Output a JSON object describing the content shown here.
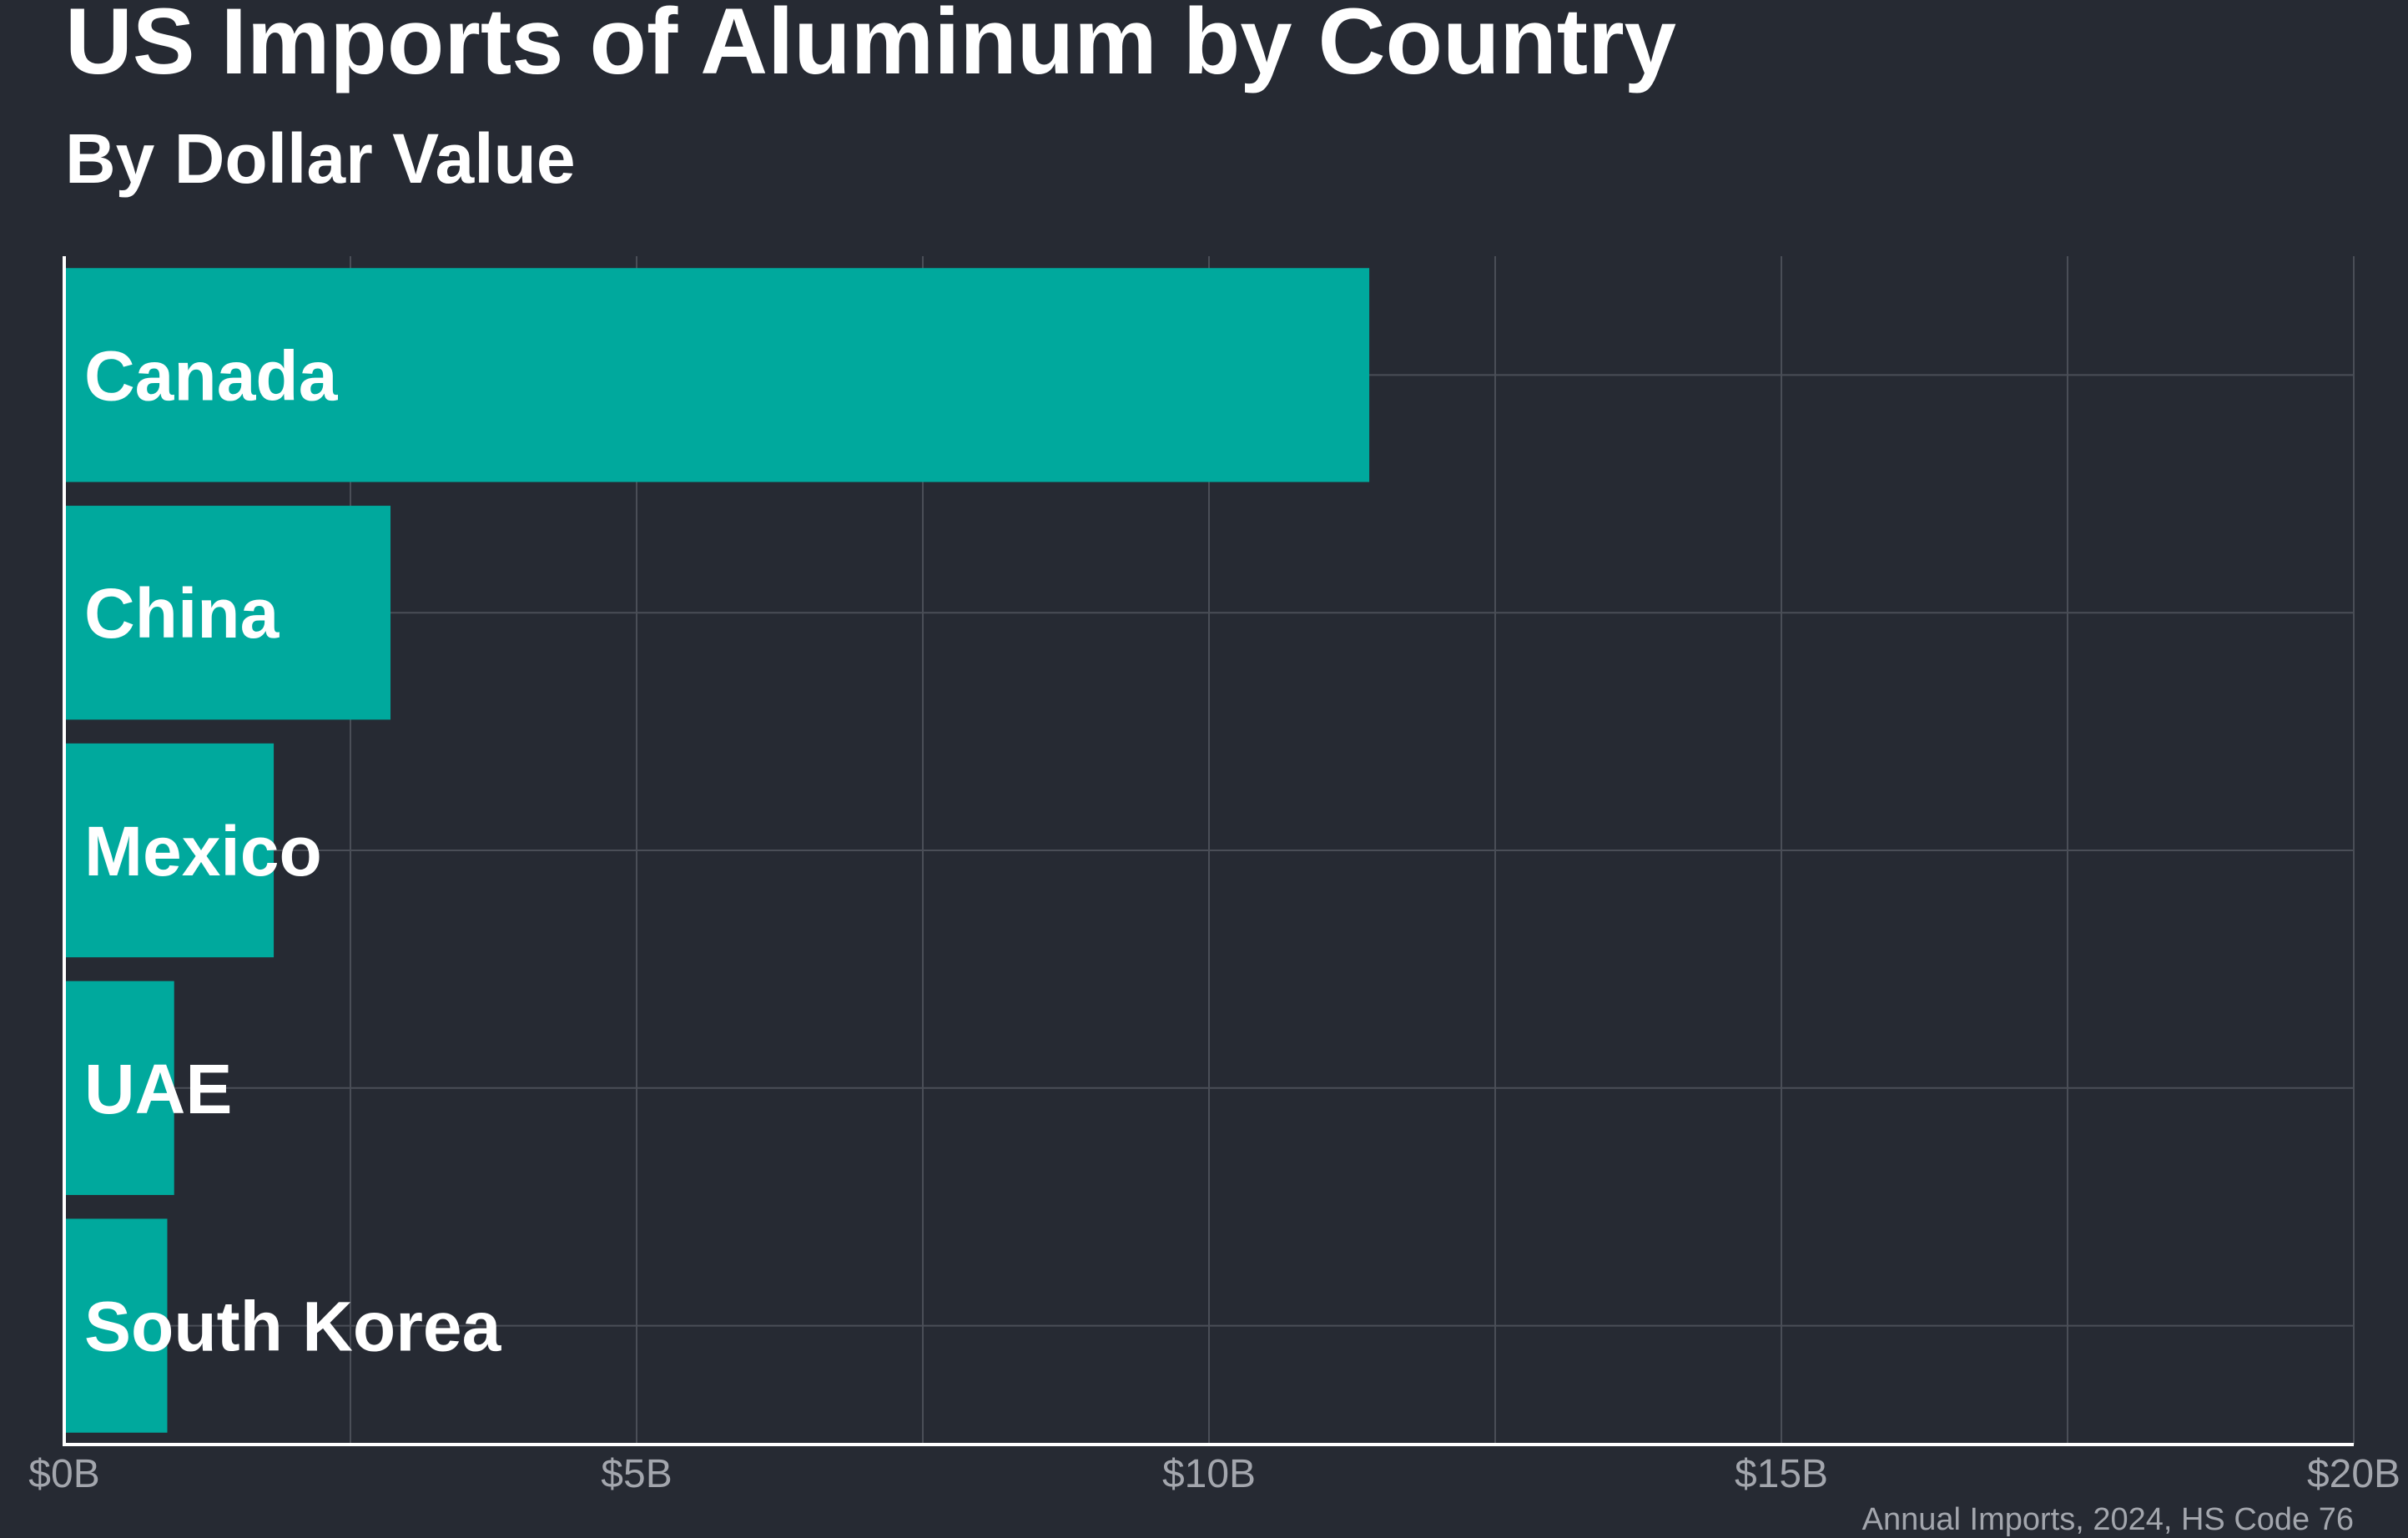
{
  "chart_data": {
    "type": "bar",
    "orientation": "horizontal",
    "title": "US Imports of Aluminum by Country",
    "subtitle": "By Dollar Value",
    "categories": [
      "Canada",
      "China",
      "Mexico",
      "UAE",
      "South Korea"
    ],
    "values": [
      11.4,
      2.85,
      1.83,
      0.96,
      0.9
    ],
    "value_unit": "billion USD",
    "xlim": [
      0,
      20
    ],
    "x_ticks": [
      0,
      5,
      10,
      15,
      20
    ],
    "x_tick_labels": [
      "$0B",
      "$5B",
      "$10B",
      "$15B",
      "$20B"
    ],
    "grid": true,
    "caption": "Annual Imports, 2024, HS Code 76",
    "colors": {
      "bar": "#00a99d",
      "background": "#262a33",
      "grid": "#4a4e57",
      "text": "#ffffff",
      "muted_text": "#a3a6ad"
    }
  }
}
